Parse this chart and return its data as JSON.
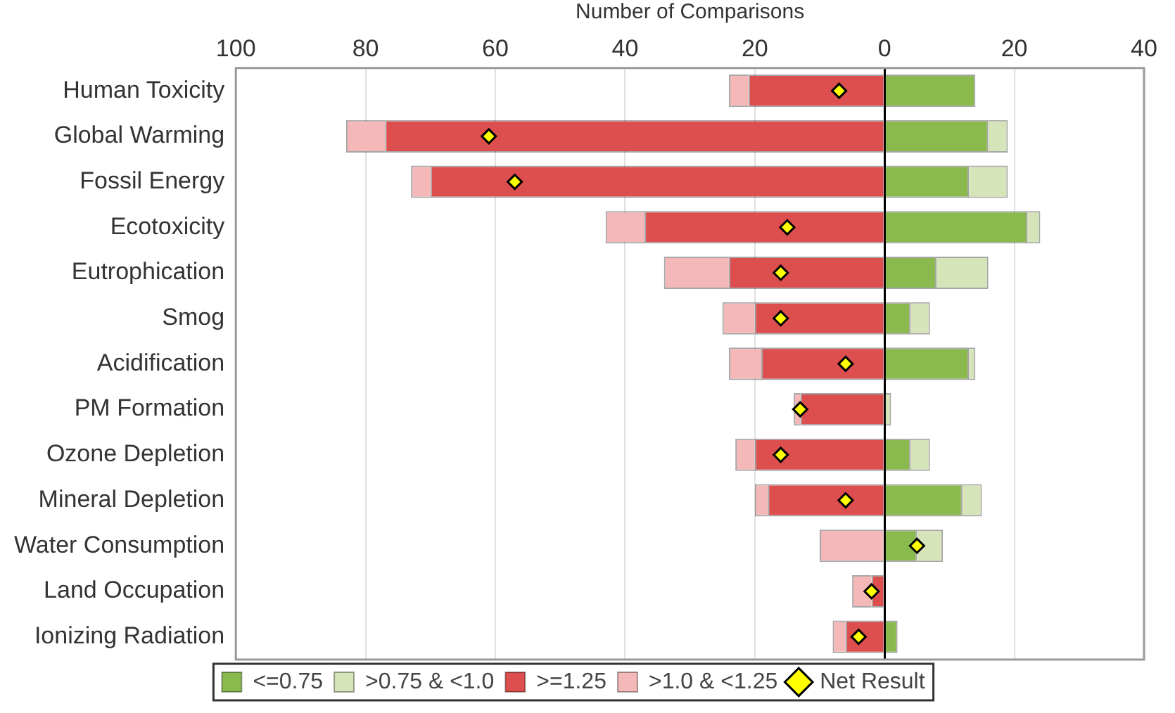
{
  "chart_data": {
    "type": "bar",
    "orientation": "horizontal",
    "stacked": true,
    "xlabel": "Number of Comparisons",
    "categories": [
      "Human Toxicity",
      "Global Warming",
      "Fossil Energy",
      "Ecotoxicity",
      "Eutrophication",
      "Smog",
      "Acidification",
      "PM Formation",
      "Ozone Depletion",
      "Mineral Depletion",
      "Water Consumption",
      "Land Occupation",
      "Ionizing Radiation"
    ],
    "series": [
      {
        "name": "<=0.75",
        "color": "#8ab94e",
        "values": [
          14,
          16,
          13,
          22,
          8,
          4,
          13,
          0,
          4,
          12,
          5,
          0,
          2
        ]
      },
      {
        "name": ">0.75 & <1.0",
        "color": "#d5e5b9",
        "values": [
          0,
          3,
          6,
          2,
          8,
          3,
          1,
          1,
          3,
          3,
          4,
          0,
          0
        ]
      },
      {
        "name": ">=1.25",
        "color": "#dd4e4e",
        "values": [
          -21,
          -77,
          -70,
          -37,
          -24,
          -20,
          -19,
          -13,
          -20,
          -18,
          0,
          -2,
          -6
        ]
      },
      {
        "name": ">1.0 & <1.25",
        "color": "#f4b8b8",
        "values": [
          -3,
          -6,
          -3,
          -6,
          -10,
          -5,
          -5,
          -1,
          -3,
          -2,
          -10,
          -3,
          -2
        ]
      },
      {
        "name": "Net Result",
        "type": "scatter",
        "marker": "diamond",
        "color": "#ffff00",
        "values": [
          -7,
          -61,
          -57,
          -15,
          -16,
          -16,
          -6,
          -13,
          -16,
          -6,
          5,
          -2,
          -4
        ]
      }
    ],
    "xlim": [
      -100,
      40
    ],
    "xticks": [
      {
        "value": -100,
        "label": "100"
      },
      {
        "value": -80,
        "label": "80"
      },
      {
        "value": -60,
        "label": "60"
      },
      {
        "value": -40,
        "label": "40"
      },
      {
        "value": -20,
        "label": "20"
      },
      0,
      20,
      40
    ],
    "grid": "x",
    "legend": "bottom"
  }
}
